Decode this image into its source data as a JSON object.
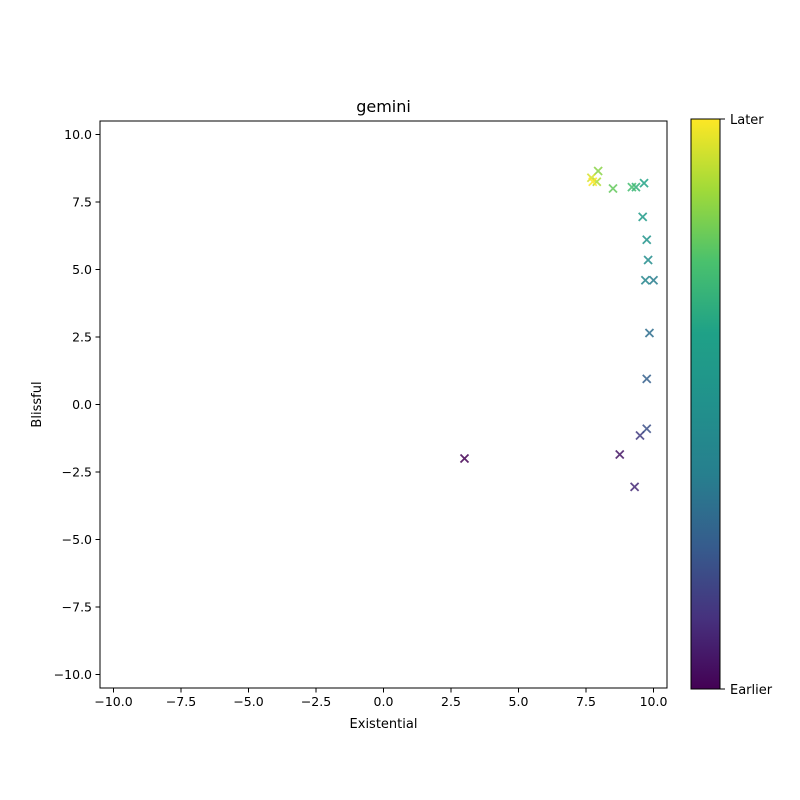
{
  "chart_data": {
    "type": "scatter",
    "title": "gemini",
    "xlabel": "Existential",
    "ylabel": "Blissful",
    "xlim": [
      -10.5,
      10.5
    ],
    "ylim": [
      -10.5,
      10.5
    ],
    "xticks": [
      -10.0,
      -7.5,
      -5.0,
      -2.5,
      0.0,
      2.5,
      5.0,
      7.5,
      10.0
    ],
    "yticks": [
      -10.0,
      -7.5,
      -5.0,
      -2.5,
      0.0,
      2.5,
      5.0,
      7.5,
      10.0
    ],
    "marker": "x",
    "colormap": "viridis",
    "colorbar": {
      "label_min": "Earlier",
      "label_max": "Later"
    },
    "points": [
      {
        "x": 3.0,
        "y": -2.0
      },
      {
        "x": 8.75,
        "y": -1.85
      },
      {
        "x": 9.3,
        "y": -3.05
      },
      {
        "x": 9.5,
        "y": -1.15
      },
      {
        "x": 9.75,
        "y": -0.9
      },
      {
        "x": 9.75,
        "y": 0.95
      },
      {
        "x": 9.85,
        "y": 2.65
      },
      {
        "x": 10.0,
        "y": 4.6
      },
      {
        "x": 9.7,
        "y": 4.6
      },
      {
        "x": 9.8,
        "y": 5.35
      },
      {
        "x": 9.75,
        "y": 6.1
      },
      {
        "x": 9.6,
        "y": 6.95
      },
      {
        "x": 9.65,
        "y": 8.2
      },
      {
        "x": 9.35,
        "y": 8.05
      },
      {
        "x": 9.2,
        "y": 8.05
      },
      {
        "x": 8.5,
        "y": 8.0
      },
      {
        "x": 7.95,
        "y": 8.65
      },
      {
        "x": 7.9,
        "y": 8.25
      },
      {
        "x": 7.7,
        "y": 8.4
      },
      {
        "x": 7.75,
        "y": 8.25
      }
    ]
  }
}
